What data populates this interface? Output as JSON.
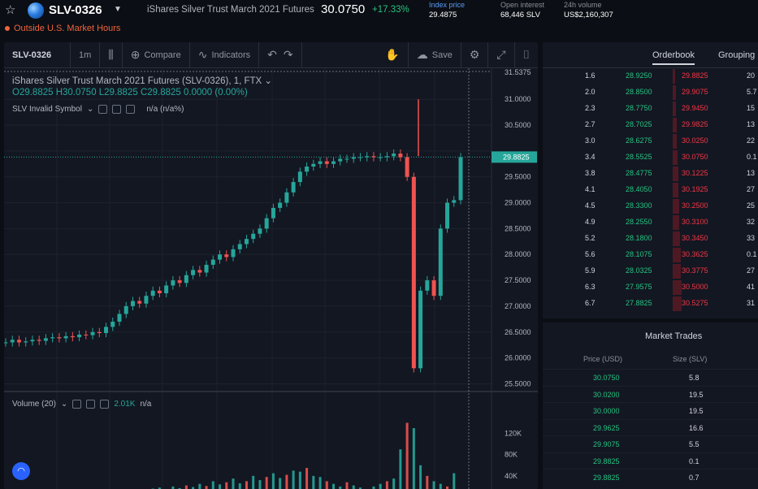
{
  "header": {
    "symbol": "SLV-0326",
    "name": "iShares Silver Trust March 2021 Futures",
    "last_price": "30.0750",
    "change": "+17.33%",
    "stats": [
      {
        "label": "Index price",
        "value": "29.4875"
      },
      {
        "label": "Open interest",
        "value": "68,446 SLV"
      },
      {
        "label": "24h volume",
        "value": "US$2,160,307"
      }
    ],
    "market_status": "Outside U.S. Market Hours"
  },
  "toolbar": {
    "symbol": "SLV-0326",
    "interval": "1m",
    "compare": "Compare",
    "indicators": "Indicators",
    "save": "Save"
  },
  "legend": {
    "title": "iShares Silver Trust March 2021 Futures (SLV-0326), 1, FTX",
    "ohlc": "O29.8825  H30.0750  L29.8825  C29.8825  0.0000 (0.00%)",
    "indicator": "SLV Invalid Symbol",
    "indicator_value": "n/a (n/a%)",
    "volume_label": "Volume (20)",
    "volume_value": "2.01K",
    "volume_na": "n/a"
  },
  "chart_data": {
    "type": "candlestick",
    "price_axis_ticks": [
      "31.0000",
      "30.5000",
      "29.5000",
      "29.0000",
      "28.5000",
      "28.0000",
      "27.5000",
      "27.0000",
      "26.5000",
      "26.0000",
      "25.5000"
    ],
    "price_axis_top": "31.5375",
    "last_price_label": "29.8825",
    "ylim": [
      25.35,
      31.6
    ],
    "volume_axis_ticks": [
      "120K",
      "80K",
      "40K",
      "0"
    ],
    "close_path": [
      26.3,
      26.35,
      26.3,
      26.32,
      26.35,
      26.33,
      26.38,
      26.4,
      26.38,
      26.42,
      26.4,
      26.45,
      26.44,
      26.5,
      26.48,
      26.6,
      26.7,
      26.85,
      27.0,
      27.1,
      27.05,
      27.2,
      27.3,
      27.25,
      27.4,
      27.5,
      27.45,
      27.6,
      27.7,
      27.65,
      27.8,
      27.9,
      28.0,
      27.95,
      28.1,
      28.2,
      28.3,
      28.4,
      28.5,
      28.7,
      28.9,
      29.0,
      29.2,
      29.4,
      29.6,
      29.7,
      29.75,
      29.8,
      29.75,
      29.8,
      29.85,
      29.85,
      29.88,
      29.88,
      29.9,
      29.88,
      29.88,
      29.9,
      29.95,
      29.88,
      29.5,
      25.8,
      27.3,
      27.5,
      27.2,
      28.5,
      29.0,
      29.05,
      29.88
    ],
    "volume_path": [
      5,
      3,
      2,
      4,
      3,
      6,
      5,
      4,
      8,
      6,
      5,
      10,
      7,
      8,
      12,
      9,
      10,
      14,
      12,
      15,
      11,
      13,
      16,
      18,
      14,
      20,
      17,
      22,
      19,
      25,
      21,
      30,
      24,
      28,
      35,
      26,
      30,
      40,
      32,
      38,
      45,
      36,
      42,
      50,
      48,
      55,
      40,
      38,
      30,
      25,
      20,
      28,
      22,
      18,
      15,
      20,
      25,
      30,
      35,
      90,
      140,
      130,
      60,
      40,
      30,
      25,
      20,
      45,
      15
    ]
  },
  "orderbook": {
    "tabs": [
      "Orderbook",
      "Grouping"
    ],
    "rows": [
      {
        "size": "1.6",
        "bid": "28.9250",
        "ask": "29.8825",
        "tail": "20"
      },
      {
        "size": "2.0",
        "bid": "28.8500",
        "ask": "29.9075",
        "tail": "5.7"
      },
      {
        "size": "2.3",
        "bid": "28.7750",
        "ask": "29.9450",
        "tail": "15"
      },
      {
        "size": "2.7",
        "bid": "28.7025",
        "ask": "29.9825",
        "tail": "13"
      },
      {
        "size": "3.0",
        "bid": "28.6275",
        "ask": "30.0250",
        "tail": "22"
      },
      {
        "size": "3.4",
        "bid": "28.5525",
        "ask": "30.0750",
        "tail": "0.1"
      },
      {
        "size": "3.8",
        "bid": "28.4775",
        "ask": "30.1225",
        "tail": "13"
      },
      {
        "size": "4.1",
        "bid": "28.4050",
        "ask": "30.1925",
        "tail": "27"
      },
      {
        "size": "4.5",
        "bid": "28.3300",
        "ask": "30.2500",
        "tail": "25"
      },
      {
        "size": "4.9",
        "bid": "28.2550",
        "ask": "30.3100",
        "tail": "32"
      },
      {
        "size": "5.2",
        "bid": "28.1800",
        "ask": "30.3450",
        "tail": "33"
      },
      {
        "size": "5.6",
        "bid": "28.1075",
        "ask": "30.3625",
        "tail": "0.1"
      },
      {
        "size": "5.9",
        "bid": "28.0325",
        "ask": "30.3775",
        "tail": "27"
      },
      {
        "size": "6.3",
        "bid": "27.9575",
        "ask": "30.5000",
        "tail": "41"
      },
      {
        "size": "6.7",
        "bid": "27.8825",
        "ask": "30.5275",
        "tail": "31"
      }
    ]
  },
  "market_trades": {
    "title": "Market Trades",
    "headers": [
      "Price (USD)",
      "Size (SLV)"
    ],
    "rows": [
      {
        "price": "30.0750",
        "size": "5.8"
      },
      {
        "price": "30.0200",
        "size": "19.5"
      },
      {
        "price": "30.0000",
        "size": "19.5"
      },
      {
        "price": "29.9625",
        "size": "16.6"
      },
      {
        "price": "29.9075",
        "size": "5.5"
      },
      {
        "price": "29.8825",
        "size": "0.1"
      },
      {
        "price": "29.8825",
        "size": "0.7"
      }
    ]
  },
  "colors": {
    "up": "#26a69a",
    "down": "#ef5350",
    "accent_green": "#26c281",
    "accent_red": "#f23645",
    "status": "#f0643c"
  },
  "icons": [
    "star-icon",
    "globe-icon",
    "candles-icon",
    "plus-circle-icon",
    "indicators-icon",
    "undo-icon",
    "redo-icon",
    "hand-icon",
    "cloud-icon",
    "gear-icon",
    "fullscreen-icon",
    "camera-icon"
  ]
}
